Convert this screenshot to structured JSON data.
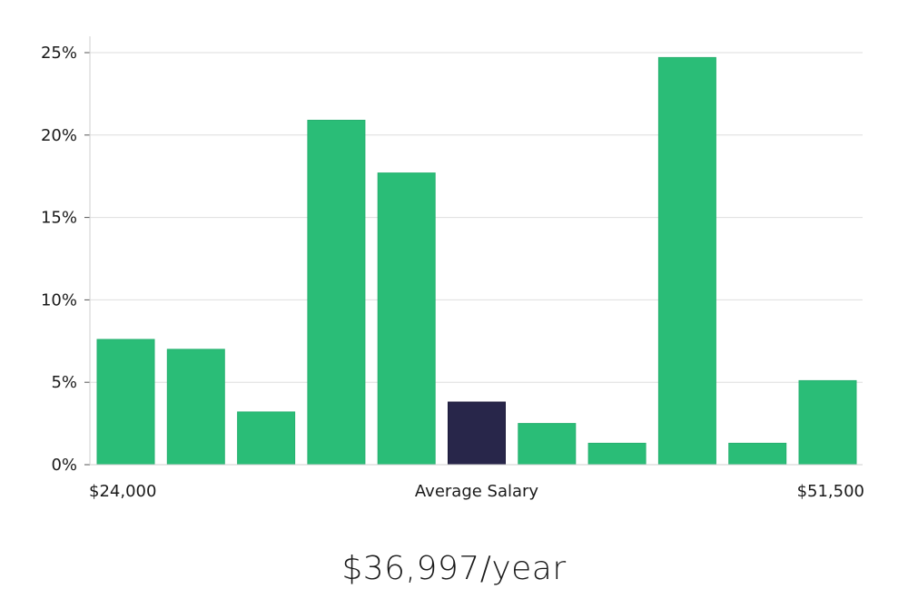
{
  "chart_data": {
    "type": "bar",
    "title": "",
    "xlabel": "Average Salary",
    "ylabel": "",
    "x_start_label": "$24,000",
    "x_end_label": "$51,500",
    "ylim": [
      0,
      26
    ],
    "yticks": [
      0,
      5,
      10,
      15,
      20,
      25
    ],
    "ytick_labels": [
      "0%",
      "5%",
      "10%",
      "15%",
      "20%",
      "25%"
    ],
    "values": [
      7.6,
      7.0,
      3.2,
      20.9,
      17.7,
      3.8,
      2.5,
      1.3,
      24.7,
      1.3,
      5.1
    ],
    "highlight_index": 5,
    "bar_color": "#2abd77",
    "highlight_color": "#28264a",
    "grid": true
  },
  "summary": {
    "average_salary": "$36,997/year"
  }
}
